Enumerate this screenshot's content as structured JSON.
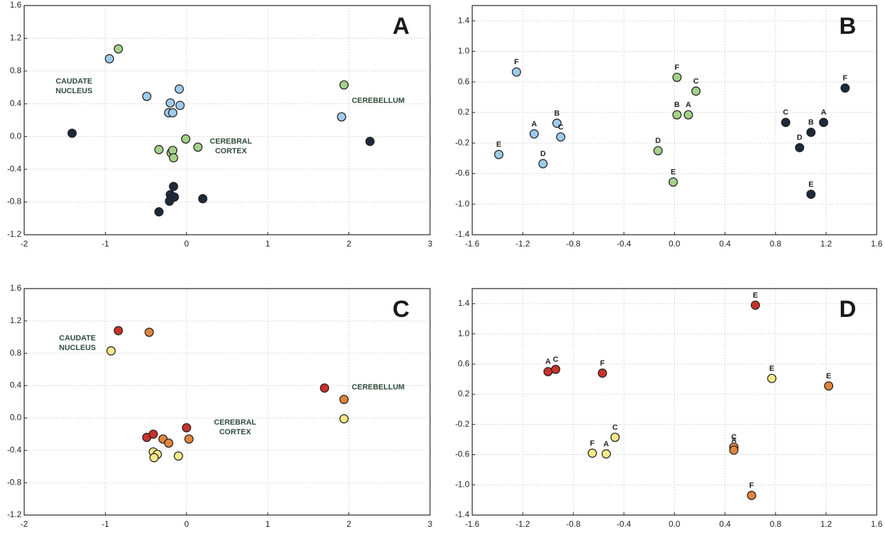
{
  "chart_data": [
    {
      "type": "scatter",
      "title": "A",
      "grid": true,
      "xlim": [
        -2,
        3
      ],
      "xticks": [
        -2,
        -1,
        0,
        1,
        2,
        3
      ],
      "ylim": [
        -1.2,
        1.6
      ],
      "yticks": [
        -1.2,
        -0.8,
        -0.4,
        {
          "value": 0,
          "label": "0.0"
        },
        0.4,
        0.8,
        1.2,
        1.6
      ],
      "annotations": [
        [
          "CAUDATE",
          "NUCLEUS"
        ],
        [
          "CEREBELLUM"
        ],
        [
          "CEREBRAL",
          "CORTEX"
        ]
      ],
      "series": [
        {
          "color": "#9ecbea",
          "x": [
            -0.95,
            -0.49,
            -0.09,
            -0.2,
            -0.08,
            -0.22,
            -0.17,
            1.91
          ],
          "y": [
            0.95,
            0.49,
            0.58,
            0.41,
            0.38,
            0.29,
            0.29,
            0.24
          ]
        },
        {
          "color": "#a6d08a",
          "x": [
            -0.84,
            -0.34,
            -0.01,
            0.14,
            -0.19,
            -0.17,
            -0.16,
            1.94
          ],
          "y": [
            1.07,
            -0.16,
            -0.03,
            -0.13,
            -0.2,
            -0.17,
            -0.26,
            0.63
          ]
        },
        {
          "color": "#1c2a3a",
          "x": [
            -1.41,
            -0.16,
            -0.2,
            -0.15,
            -0.21,
            -0.34,
            0.2,
            2.26
          ],
          "y": [
            0.04,
            -0.61,
            -0.71,
            -0.74,
            -0.79,
            -0.92,
            -0.76,
            -0.06
          ]
        }
      ]
    },
    {
      "type": "scatter",
      "title": "B",
      "grid": true,
      "xlim": [
        -1.6,
        1.6
      ],
      "xticks": [
        -1.6,
        -1.2,
        -0.8,
        -0.4,
        {
          "value": 0,
          "label": "0.0"
        },
        0.4,
        0.8,
        1.2,
        1.6
      ],
      "ylim": [
        -1.4,
        1.6
      ],
      "yticks": [
        -1.4,
        {
          "value": -1,
          "label": "-1.0"
        },
        -0.6,
        -0.2,
        0.2,
        0.6,
        {
          "value": 1,
          "label": "1.0"
        },
        1.4
      ],
      "series": [
        {
          "color": "#9ecbea",
          "labels": [
            "F",
            "A",
            "B",
            "C",
            "D",
            "E"
          ],
          "x": [
            -1.25,
            -1.11,
            -0.93,
            -0.9,
            -1.04,
            -1.39
          ],
          "y": [
            0.73,
            -0.08,
            0.06,
            -0.12,
            -0.47,
            -0.35
          ]
        },
        {
          "color": "#a6d08a",
          "labels": [
            "F",
            "C",
            "B",
            "A",
            "D",
            "E"
          ],
          "x": [
            0.02,
            0.17,
            0.02,
            0.11,
            -0.13,
            -0.01
          ],
          "y": [
            0.66,
            0.48,
            0.17,
            0.17,
            -0.3,
            -0.71
          ]
        },
        {
          "color": "#1c2a3a",
          "labels": [
            "F",
            "C",
            "A",
            "B",
            "D",
            "E"
          ],
          "x": [
            1.35,
            0.88,
            1.18,
            1.08,
            0.99,
            1.08
          ],
          "y": [
            0.52,
            0.07,
            0.07,
            -0.06,
            -0.26,
            -0.87
          ]
        }
      ]
    },
    {
      "type": "scatter",
      "title": "C",
      "grid": true,
      "xlim": [
        -2,
        3
      ],
      "xticks": [
        -2,
        -1,
        0,
        1,
        2,
        3
      ],
      "ylim": [
        -1.2,
        1.6
      ],
      "yticks": [
        -1.2,
        -0.8,
        -0.4,
        {
          "value": 0,
          "label": "0.0"
        },
        0.4,
        0.8,
        1.2,
        1.6
      ],
      "annotations": [
        [
          "CAUDATE",
          "NUCLEUS"
        ],
        [
          "CEREBELLUM"
        ],
        [
          "CEREBRAL",
          "CORTEX"
        ]
      ],
      "series": [
        {
          "color": "#c8322a",
          "x": [
            -0.84,
            1.7,
            -0.49,
            -0.41,
            0.0
          ],
          "y": [
            1.08,
            0.37,
            -0.24,
            -0.2,
            -0.12
          ]
        },
        {
          "color": "#e0843c",
          "x": [
            -0.46,
            1.94,
            -0.29,
            -0.22,
            0.03
          ],
          "y": [
            1.06,
            0.23,
            -0.26,
            -0.31,
            -0.26
          ]
        },
        {
          "color": "#f7e98a",
          "x": [
            -0.93,
            1.94,
            -0.41,
            -0.36,
            -0.4,
            -0.1
          ],
          "y": [
            0.83,
            -0.01,
            -0.42,
            -0.45,
            -0.49,
            -0.47
          ]
        }
      ]
    },
    {
      "type": "scatter",
      "title": "D",
      "grid": true,
      "xlim": [
        -1.6,
        1.6
      ],
      "xticks": [
        -1.6,
        -1.2,
        -0.8,
        -0.4,
        {
          "value": 0,
          "label": "0.0"
        },
        0.4,
        0.8,
        1.2,
        1.6
      ],
      "ylim": [
        -1.4,
        1.6
      ],
      "yticks": [
        -1.4,
        {
          "value": -1,
          "label": "-1.0"
        },
        -0.6,
        -0.2,
        0.2,
        0.6,
        {
          "value": 1,
          "label": "1.0"
        },
        1.4
      ],
      "series": [
        {
          "color": "#c8322a",
          "labels": [
            "E",
            "A",
            "C",
            "F"
          ],
          "x": [
            0.64,
            -1.0,
            -0.94,
            -0.57
          ],
          "y": [
            1.38,
            0.5,
            0.53,
            0.48
          ]
        },
        {
          "color": "#f7e98a",
          "labels": [
            "E",
            "C",
            "F",
            "A"
          ],
          "x": [
            0.77,
            -0.47,
            -0.65,
            -0.54
          ],
          "y": [
            0.41,
            -0.37,
            -0.58,
            -0.59
          ]
        },
        {
          "color": "#e0843c",
          "labels": [
            "E",
            "C",
            "A",
            "F"
          ],
          "x": [
            1.22,
            0.47,
            0.47,
            0.61
          ],
          "y": [
            0.31,
            -0.5,
            -0.54,
            -1.14
          ]
        }
      ]
    }
  ]
}
